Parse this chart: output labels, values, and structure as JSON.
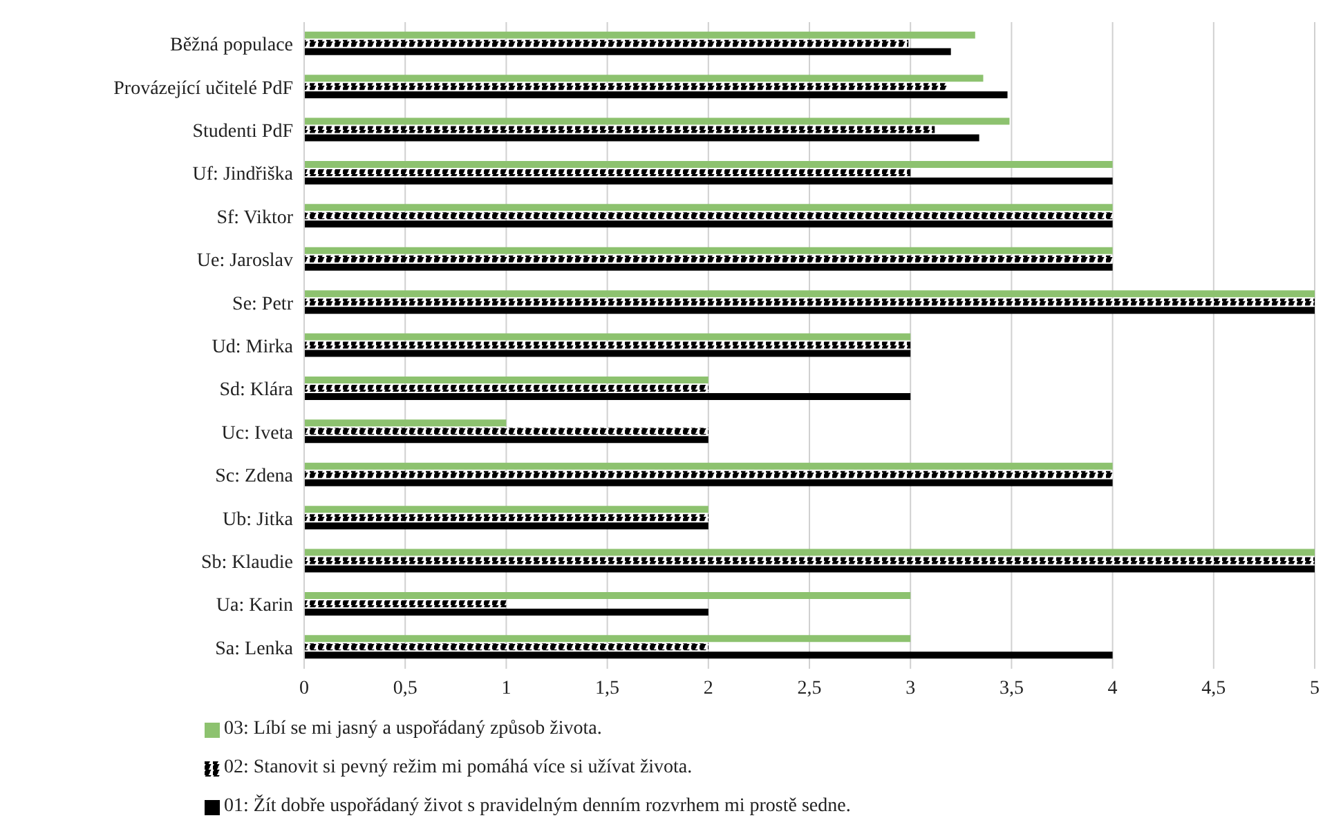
{
  "chart_data": {
    "type": "bar",
    "orientation": "horizontal",
    "categories": [
      "Běžná populace",
      "Provázející učitelé PdF",
      "Studenti PdF",
      "Uf: Jindřiška",
      "Sf: Viktor",
      "Ue: Jaroslav",
      "Se: Petr",
      "Ud: Mirka",
      "Sd: Klára",
      "Uc: Iveta",
      "Sc: Zdena",
      "Ub: Jitka",
      "Sb: Klaudie",
      "Ua: Karin",
      "Sa: Lenka"
    ],
    "series": [
      {
        "name": "03: Líbí se mi jasný a uspořádaný způsob života.",
        "color": "#8dc26f",
        "values": [
          3.32,
          3.36,
          3.49,
          4,
          4,
          4,
          5,
          3,
          2,
          1,
          4,
          2,
          5,
          3,
          3
        ]
      },
      {
        "name": "02: Stanovit si pevný režim mi pomáhá více si užívat života.",
        "color": "#000000",
        "line_style": "dashed",
        "values": [
          2.99,
          3.18,
          3.12,
          3,
          4,
          4,
          5,
          3,
          2,
          2,
          4,
          2,
          5,
          1,
          2
        ]
      },
      {
        "name": "01: Žít dobře uspořádaný život s pravidelným denním rozvrhem mi prostě sedne.",
        "color": "#000000",
        "values": [
          3.2,
          3.48,
          3.34,
          4,
          4,
          4,
          5,
          3,
          3,
          2,
          4,
          2,
          5,
          2,
          4
        ]
      }
    ],
    "xlim": [
      0,
      5
    ],
    "xticks": [
      0,
      {
        "value": 0.5,
        "label": "0,5"
      },
      1,
      {
        "value": 1.5,
        "label": "1,5"
      },
      2,
      {
        "value": 2.5,
        "label": "2,5"
      },
      3,
      {
        "value": 3.5,
        "label": "3,5"
      },
      4,
      {
        "value": 4.5,
        "label": "4,5"
      },
      5
    ],
    "grid": "x",
    "legend": "bottom"
  }
}
